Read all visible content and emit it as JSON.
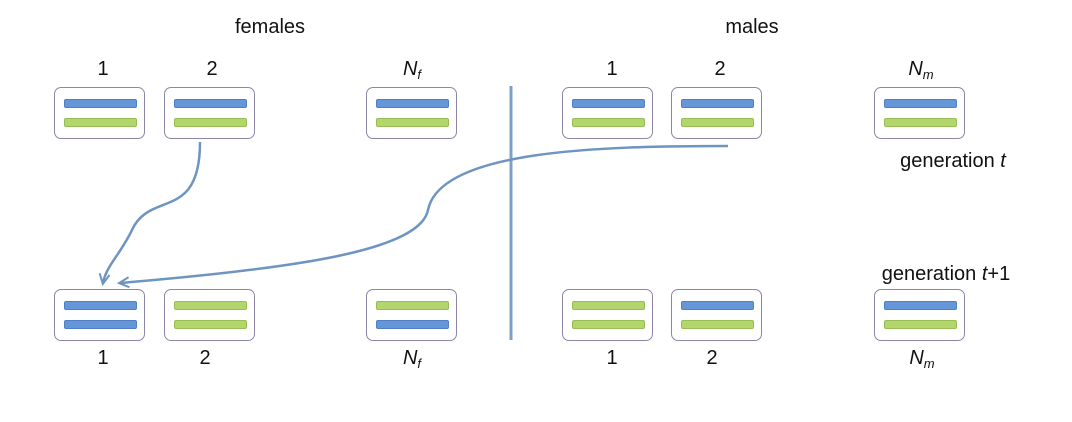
{
  "headers": {
    "females": "females",
    "males": "males"
  },
  "generation_labels": {
    "gen_t_prefix": "generation ",
    "gen_t_var": "t",
    "gen_t1_prefix": "generation ",
    "gen_t1_var": "t",
    "gen_t1_suffix": "+1"
  },
  "individuals": {
    "top": [
      {
        "group": "female",
        "label": "1",
        "chromosomes": [
          "blue",
          "green"
        ]
      },
      {
        "group": "female",
        "label": "2",
        "chromosomes": [
          "blue",
          "green"
        ]
      },
      {
        "group": "female",
        "label": "N",
        "sub": "f",
        "chromosomes": [
          "blue",
          "green"
        ]
      },
      {
        "group": "male",
        "label": "1",
        "chromosomes": [
          "blue",
          "green"
        ]
      },
      {
        "group": "male",
        "label": "2",
        "chromosomes": [
          "blue",
          "green"
        ]
      },
      {
        "group": "male",
        "label": "N",
        "sub": "m",
        "chromosomes": [
          "blue",
          "green"
        ]
      }
    ],
    "bottom": [
      {
        "group": "female",
        "label": "1",
        "chromosomes": [
          "blue",
          "blue"
        ]
      },
      {
        "group": "female",
        "label": "2",
        "chromosomes": [
          "green",
          "green"
        ]
      },
      {
        "group": "female",
        "label": "N",
        "sub": "f",
        "chromosomes": [
          "green",
          "blue"
        ]
      },
      {
        "group": "male",
        "label": "1",
        "chromosomes": [
          "green",
          "green"
        ]
      },
      {
        "group": "male",
        "label": "2",
        "chromosomes": [
          "blue",
          "green"
        ]
      },
      {
        "group": "male",
        "label": "N",
        "sub": "m",
        "chromosomes": [
          "blue",
          "green"
        ]
      }
    ]
  },
  "colors": {
    "chromosome_blue": "#6596d8",
    "chromosome_green": "#b2d66c",
    "box_border": "#8f86a6",
    "arrow": "#6e94c2",
    "divider": "#7da0c8"
  }
}
